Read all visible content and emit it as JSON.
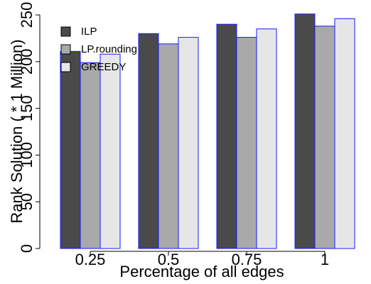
{
  "chart_data": {
    "type": "bar",
    "title": "",
    "xlabel": "Percentage of all edges",
    "ylabel": "Rank Solution ( * 1 Million)",
    "categories": [
      "0.25",
      "0.5",
      "0.75",
      "1"
    ],
    "yticks": [
      "0",
      "50",
      "100",
      "150",
      "200",
      "250"
    ],
    "ylim": [
      0,
      250
    ],
    "grid": false,
    "legend_position": "top-left",
    "bar_edge_color": "#1a1aff",
    "series": [
      {
        "name": "ILP",
        "color": "#4a4a4a",
        "values": [
          211,
          230,
          240,
          251
        ]
      },
      {
        "name": "LP.rounding",
        "color": "#a9a9a9",
        "values": [
          199,
          219,
          226,
          238
        ]
      },
      {
        "name": "GREEDY",
        "color": "#e6e6e6",
        "values": [
          208,
          226,
          235,
          246
        ]
      }
    ]
  }
}
